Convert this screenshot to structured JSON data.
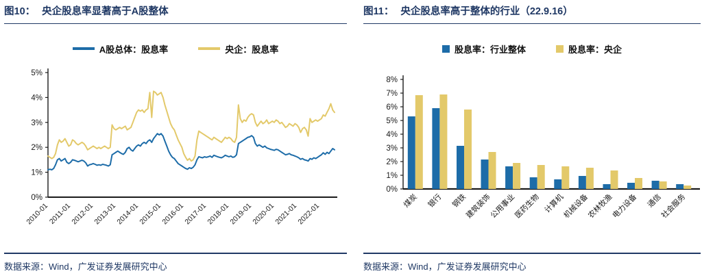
{
  "colors": {
    "accent_navy": "#1F3864",
    "series_blue": "#1D6CA8",
    "series_gold": "#E3C96A",
    "axis": "#1a1a1a",
    "background": "#ffffff"
  },
  "figures": [
    {
      "label": "图10：",
      "title": "央企股息率显著高于A股整体",
      "source": "数据来源：Wind，广发证券发展研究中心",
      "chart_data": {
        "type": "line",
        "x_frequency": "monthly",
        "x_start": "2010-01",
        "x_end": "2022-09",
        "x_tick_labels": [
          "2010-01",
          "2011-01",
          "2012-01",
          "2013-01",
          "2014-01",
          "2015-01",
          "2016-01",
          "2017-01",
          "2018-01",
          "2019-01",
          "2020-01",
          "2021-01",
          "2022-01"
        ],
        "ylim": [
          0,
          5
        ],
        "y_tick_labels": [
          "0%",
          "1%",
          "2%",
          "3%",
          "4%",
          "5%"
        ],
        "grid": false,
        "legend_position": "top",
        "series": [
          {
            "name": "A股总体：股息率",
            "color": "#1D6CA8",
            "values": [
              1.1,
              1.12,
              1.1,
              1.15,
              1.3,
              1.5,
              1.55,
              1.45,
              1.5,
              1.55,
              1.4,
              1.35,
              1.4,
              1.5,
              1.48,
              1.45,
              1.42,
              1.45,
              1.48,
              1.45,
              1.38,
              1.25,
              1.3,
              1.32,
              1.35,
              1.32,
              1.28,
              1.3,
              1.28,
              1.32,
              1.3,
              1.28,
              1.25,
              1.3,
              1.7,
              1.75,
              1.8,
              1.85,
              1.8,
              1.75,
              1.72,
              1.8,
              1.95,
              2.0,
              1.9,
              1.85,
              1.95,
              2.05,
              2.1,
              2.05,
              2.15,
              2.2,
              2.15,
              2.25,
              2.3,
              2.2,
              2.35,
              2.45,
              2.55,
              2.5,
              2.55,
              2.45,
              2.25,
              2.05,
              1.85,
              1.7,
              1.6,
              1.55,
              1.45,
              1.35,
              1.3,
              1.25,
              1.2,
              1.15,
              1.12,
              1.18,
              1.15,
              1.2,
              1.3,
              1.5,
              1.62,
              1.6,
              1.58,
              1.62,
              1.6,
              1.62,
              1.65,
              1.6,
              1.68,
              1.65,
              1.62,
              1.6,
              1.58,
              1.62,
              1.68,
              1.65,
              1.62,
              1.65,
              1.6,
              1.62,
              1.7,
              2.15,
              2.2,
              2.25,
              2.3,
              2.35,
              2.4,
              2.42,
              2.47,
              2.4,
              2.15,
              2.05,
              2.1,
              2.05,
              2.0,
              2.05,
              1.98,
              1.95,
              1.92,
              1.9,
              1.88,
              1.92,
              1.9,
              1.85,
              1.8,
              1.75,
              1.7,
              1.72,
              1.75,
              1.7,
              1.68,
              1.65,
              1.62,
              1.58,
              1.52,
              1.55,
              1.5,
              1.48,
              1.45,
              1.55,
              1.52,
              1.58,
              1.55,
              1.6,
              1.65,
              1.7,
              1.78,
              1.72,
              1.8,
              1.75,
              1.85,
              1.95,
              1.9
            ]
          },
          {
            "name": "央企：股息率",
            "color": "#E3C96A",
            "values": [
              1.65,
              1.6,
              1.55,
              1.6,
              1.75,
              2.1,
              2.3,
              2.2,
              2.25,
              2.35,
              2.2,
              2.05,
              2.1,
              2.3,
              2.25,
              2.15,
              2.1,
              2.15,
              2.2,
              2.15,
              2.05,
              1.9,
              1.95,
              2.0,
              2.05,
              2.0,
              1.95,
              2.0,
              1.95,
              2.0,
              2.05,
              2.0,
              1.95,
              2.0,
              2.9,
              2.75,
              2.7,
              2.75,
              2.8,
              2.75,
              2.8,
              2.85,
              2.7,
              2.75,
              2.8,
              3.0,
              3.2,
              3.4,
              3.5,
              3.45,
              3.5,
              3.4,
              3.5,
              3.55,
              4.2,
              3.2,
              4.25,
              4.2,
              4.1,
              4.15,
              4.2,
              4.0,
              3.7,
              3.45,
              3.2,
              2.95,
              2.8,
              2.7,
              2.5,
              2.3,
              2.15,
              2.0,
              1.75,
              1.6,
              1.48,
              1.55,
              1.45,
              1.5,
              1.65,
              2.3,
              2.65,
              2.6,
              2.55,
              2.5,
              2.45,
              2.4,
              2.35,
              2.3,
              2.4,
              2.35,
              2.3,
              2.25,
              2.2,
              2.3,
              2.4,
              2.35,
              2.4,
              2.35,
              2.25,
              2.2,
              2.4,
              3.7,
              3.15,
              3.0,
              3.1,
              3.05,
              3.2,
              3.3,
              3.35,
              3.3,
              3.0,
              2.85,
              2.95,
              3.05,
              2.95,
              3.0,
              3.1,
              2.95,
              3.0,
              3.05,
              3.0,
              3.1,
              3.05,
              2.95,
              3.0,
              2.9,
              2.8,
              2.85,
              2.95,
              2.9,
              2.85,
              2.95,
              2.9,
              2.8,
              2.6,
              2.75,
              2.8,
              2.7,
              2.45,
              3.15,
              3.0,
              3.05,
              3.1,
              3.05,
              3.1,
              3.15,
              3.3,
              3.25,
              3.4,
              3.55,
              3.75,
              3.5,
              3.4
            ]
          }
        ]
      }
    },
    {
      "label": "图11：",
      "title": "央企股息率高于整体的行业（22.9.16）",
      "source": "数据来源：Wind，广发证券发展研究中心",
      "chart_data": {
        "type": "bar",
        "categories": [
          "煤炭",
          "银行",
          "钢铁",
          "建筑装饰",
          "公用事业",
          "医药生物",
          "计算机",
          "机械设备",
          "农林牧渔",
          "电力设备",
          "通信",
          "社会服务"
        ],
        "ylim": [
          0,
          8
        ],
        "y_tick_labels": [
          "0%",
          "1%",
          "2%",
          "3%",
          "4%",
          "5%",
          "6%",
          "7%",
          "8%"
        ],
        "grid": false,
        "legend_position": "top",
        "series": [
          {
            "name": "股息率：行业整体",
            "color": "#1D6CA8",
            "values": [
              5.3,
              5.9,
              3.15,
              2.15,
              1.65,
              0.85,
              0.7,
              0.95,
              0.35,
              0.45,
              0.6,
              0.35
            ]
          },
          {
            "name": "股息率：央企",
            "color": "#E3C96A",
            "values": [
              6.85,
              6.9,
              5.8,
              2.7,
              1.9,
              1.75,
              1.65,
              1.55,
              1.35,
              0.8,
              0.55,
              0.25
            ]
          }
        ]
      }
    }
  ]
}
